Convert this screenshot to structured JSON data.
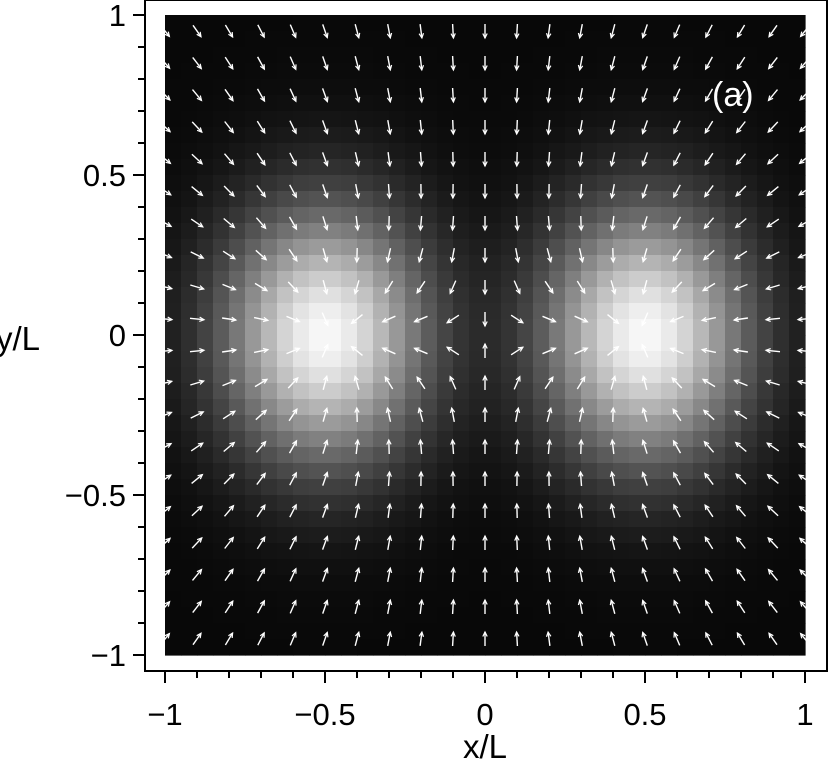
{
  "chart_data": {
    "type": "heatmap",
    "overlay": "vector-field",
    "colormap": "grayscale",
    "background_color": "#000000",
    "highlight_color": "#ffffff",
    "arrow_color": "#ffffff",
    "xlabel": "x/L",
    "ylabel": "y/L",
    "panel_label": "(a)",
    "xlim": [
      -1,
      1
    ],
    "ylim": [
      -1,
      1
    ],
    "grid": false,
    "x_ticks": [
      {
        "value": -1,
        "label": "−1"
      },
      {
        "value": -0.5,
        "label": "−0.5"
      },
      {
        "value": 0,
        "label": "0"
      },
      {
        "value": 0.5,
        "label": "0.5"
      },
      {
        "value": 1,
        "label": "1"
      }
    ],
    "y_ticks": [
      {
        "value": 1,
        "label": "1"
      },
      {
        "value": 0.5,
        "label": "0.5"
      },
      {
        "value": 0,
        "label": "0"
      },
      {
        "value": -0.5,
        "label": "−0.5"
      },
      {
        "value": -1,
        "label": "−1"
      }
    ],
    "intensity_peaks": [
      {
        "x": -0.5,
        "y": 0,
        "amplitude": 1.0,
        "sigma_x": 0.2,
        "sigma_y": 0.25
      },
      {
        "x": 0.5,
        "y": 0,
        "amplitude": 1.0,
        "sigma_x": 0.2,
        "sigma_y": 0.25
      }
    ],
    "vector_field": {
      "description_of_direction": "arrows point toward the two bright peaks",
      "grid_x": [
        -1,
        -0.9,
        -0.8,
        -0.7,
        -0.6,
        -0.5,
        -0.4,
        -0.3,
        -0.2,
        -0.1,
        0,
        0.1,
        0.2,
        0.3,
        0.4,
        0.5,
        0.6,
        0.7,
        0.8,
        0.9,
        1
      ],
      "grid_y": [
        0.95,
        0.85,
        0.75,
        0.65,
        0.55,
        0.45,
        0.35,
        0.25,
        0.15,
        0.05,
        -0.05,
        -0.15,
        -0.25,
        -0.35,
        -0.45,
        -0.55,
        -0.65,
        -0.75,
        -0.85,
        -0.95
      ],
      "sinks": [
        {
          "x": -0.5,
          "y": 0
        },
        {
          "x": 0.5,
          "y": 0
        }
      ]
    }
  }
}
